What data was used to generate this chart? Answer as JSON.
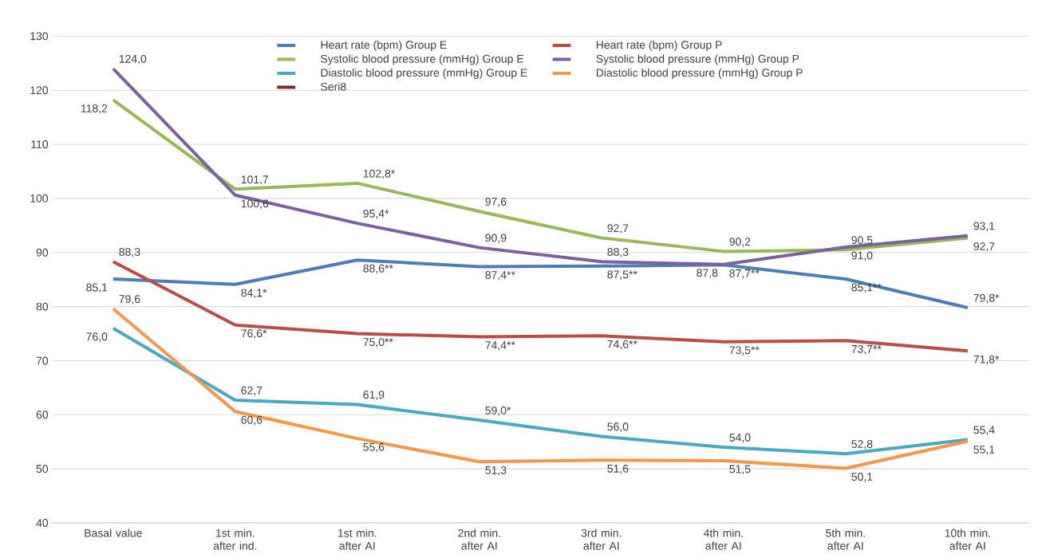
{
  "chart_data": {
    "type": "line",
    "categories": [
      "Basal value",
      "1st min. after ind.",
      "1st min. after AI",
      "2nd min. after AI",
      "3rd min. after AI",
      "4th min. after AI",
      "5th min. after AI",
      "10th min. after AI"
    ],
    "series": [
      {
        "name": "Heart rate (bpm) Group E",
        "color": "#4a7ebb",
        "values": [
          85.1,
          84.1,
          88.6,
          87.4,
          87.5,
          87.7,
          85.1,
          79.8
        ],
        "value_labels": [
          "85,1",
          "84,1*",
          "88,6**",
          "87,4**",
          "87,5**",
          "87,7**",
          "85,1**",
          "79,8*"
        ]
      },
      {
        "name": "Heart rate (bpm) Group P",
        "color": "#be4b48",
        "values": [
          88.3,
          76.6,
          75.0,
          74.4,
          74.6,
          73.5,
          73.7,
          71.8
        ],
        "value_labels": [
          "88,3",
          "76,6*",
          "75,0**",
          "74,4**",
          "74,6**",
          "73,5**",
          "73,7**",
          "71,8*"
        ]
      },
      {
        "name": "Systolic blood pressure (mmHg) Group E",
        "color": "#98b954",
        "values": [
          118.2,
          101.7,
          102.8,
          97.6,
          92.7,
          90.2,
          90.5,
          92.7
        ],
        "value_labels": [
          "118,2",
          "101,7",
          "102,8*",
          "97,6",
          "92,7",
          "90,2",
          "90,5",
          "92,7"
        ]
      },
      {
        "name": "Systolic blood pressure (mmHg) Group P",
        "color": "#7d60a0",
        "values": [
          124.0,
          100.6,
          95.4,
          90.9,
          88.3,
          87.8,
          91.0,
          93.1
        ],
        "value_labels": [
          "124,0",
          "100,6",
          "95,4*",
          "90,9",
          "88,3",
          "87,8",
          "91,0",
          "93,1"
        ]
      },
      {
        "name": "Diastolic blood pressure (mmHg) Group E",
        "color": "#46aac5",
        "values": [
          76.0,
          62.7,
          61.9,
          59.0,
          56.0,
          54.0,
          52.8,
          55.4
        ],
        "value_labels": [
          "76,0",
          "62,7",
          "61,9",
          "59,0*",
          "56,0",
          "54,0",
          "52,8",
          "55,4"
        ]
      },
      {
        "name": "Diastolic blood pressure (mmHg) Group P",
        "color": "#f79646",
        "values": [
          79.6,
          60.6,
          55.6,
          51.3,
          51.6,
          51.5,
          50.1,
          55.1
        ],
        "value_labels": [
          "79,6",
          "60,6",
          "55,6",
          "51,3",
          "51,6",
          "51,5",
          "50,1",
          "55,1"
        ]
      },
      {
        "name": "Seri8",
        "color": "#772c2a",
        "values": [
          null,
          null,
          null,
          null,
          null,
          null,
          null,
          null
        ]
      }
    ],
    "ylim": [
      40,
      130
    ],
    "yticks": [
      40,
      50,
      60,
      70,
      80,
      90,
      100,
      110,
      120,
      130
    ],
    "grid": "y",
    "legend": "top",
    "marker": "none",
    "line_style": "solid"
  }
}
